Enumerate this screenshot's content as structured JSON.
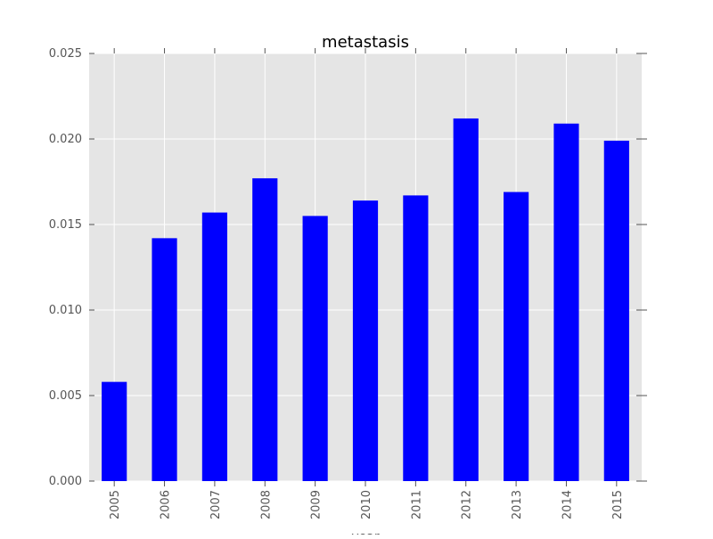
{
  "chart_data": {
    "type": "bar",
    "title": "metastasis",
    "xlabel": "year",
    "ylabel": "",
    "categories": [
      "2005",
      "2006",
      "2007",
      "2008",
      "2009",
      "2010",
      "2011",
      "2012",
      "2013",
      "2014",
      "2015"
    ],
    "values": [
      0.0058,
      0.0142,
      0.0157,
      0.0177,
      0.0155,
      0.0164,
      0.0167,
      0.0212,
      0.0169,
      0.0209,
      0.0199
    ],
    "ylim": [
      0,
      0.025
    ],
    "yticks": [
      "0.000",
      "0.005",
      "0.010",
      "0.015",
      "0.020",
      "0.025"
    ],
    "grid": true,
    "colors": {
      "bar": "#0000ff",
      "plot_bg": "#e5e5e5",
      "grid": "#ffffff"
    }
  }
}
